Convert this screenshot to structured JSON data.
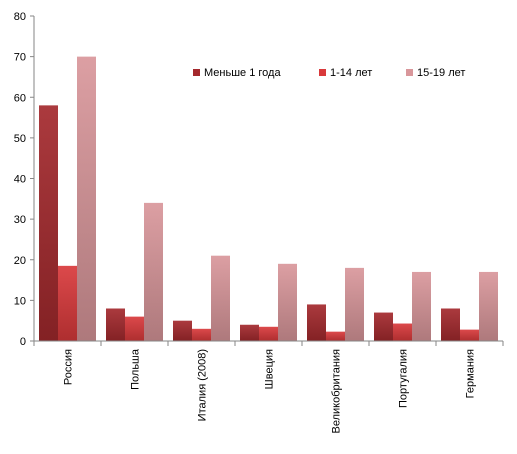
{
  "chart_data": {
    "type": "bar",
    "title": "",
    "xlabel": "",
    "ylabel": "",
    "ylim": [
      0,
      80
    ],
    "yticks": [
      0,
      10,
      20,
      30,
      40,
      50,
      60,
      70,
      80
    ],
    "grid": false,
    "legend_position": "top-right",
    "categories": [
      "Россия",
      "Польша",
      "Италия (2008)",
      "Швеция",
      "Великобритания",
      "Португалия",
      "Германия"
    ],
    "series": [
      {
        "name": "Меньше 1 года",
        "color": "#a4292d",
        "values": [
          58,
          8,
          5,
          4,
          9,
          7,
          8
        ]
      },
      {
        "name": "1-14 лет",
        "color": "#d9393b",
        "values": [
          18.5,
          6,
          3,
          3.5,
          2.3,
          4.3,
          2.8
        ]
      },
      {
        "name": "15-19  лет",
        "color": "#d9979b",
        "values": [
          70,
          34,
          21,
          19,
          18,
          17,
          17
        ]
      }
    ]
  }
}
